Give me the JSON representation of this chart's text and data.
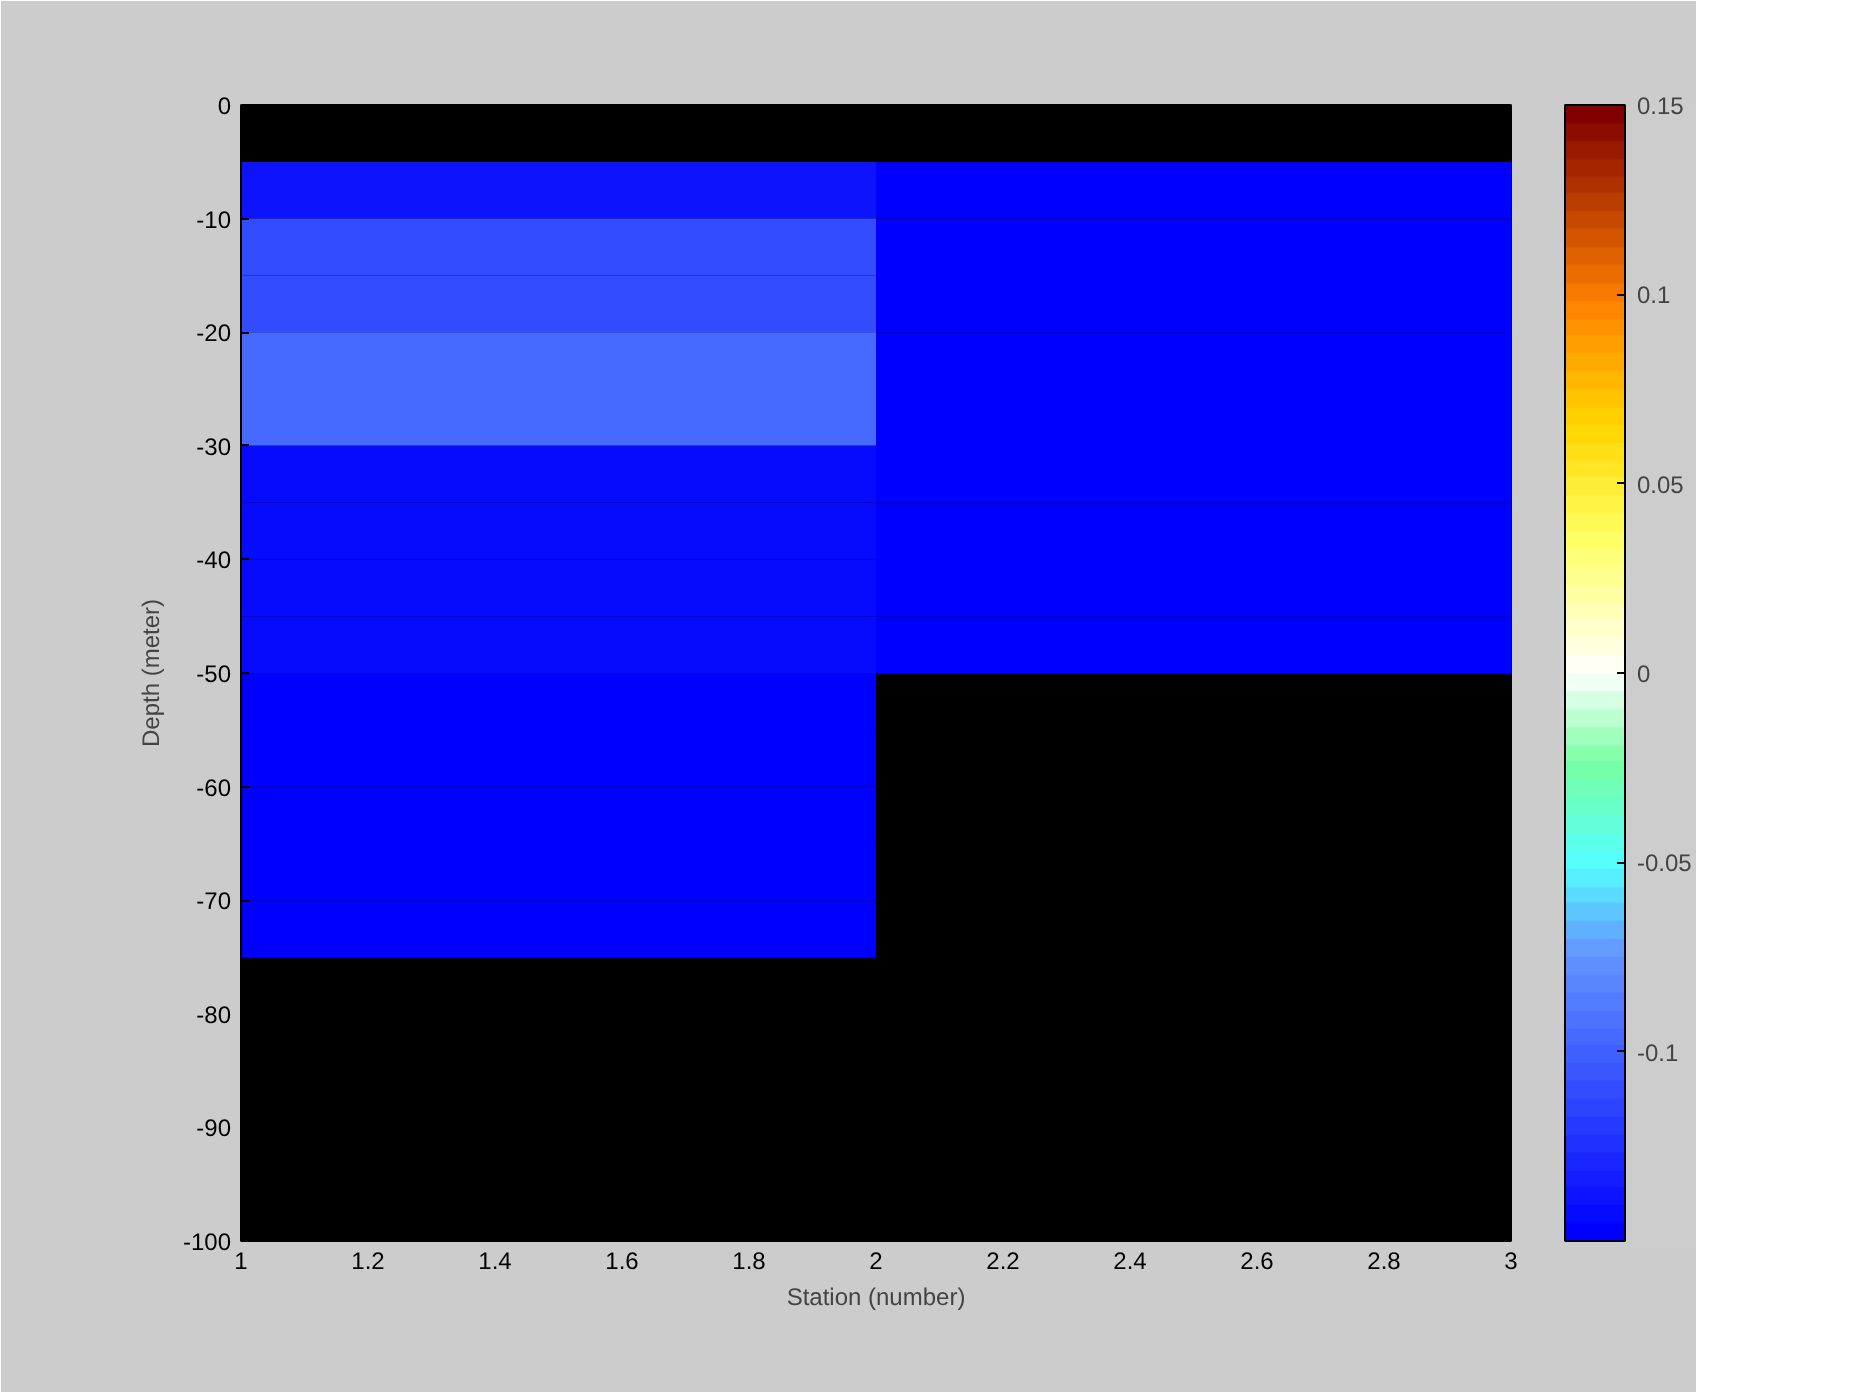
{
  "chart_data": {
    "type": "heatmap",
    "xlabel": "Station (number)",
    "ylabel": "Depth (meter)",
    "x": [
      1.5,
      2.5
    ],
    "y": [
      -7.5,
      -12.5,
      -17.5,
      -22.5,
      -27.5,
      -32.5,
      -37.5,
      -42.5,
      -47.5,
      -52.5,
      -57.5,
      -62.5,
      -67.5,
      -72.5
    ],
    "cells": [
      [
        -0.14,
        -0.15
      ],
      [
        -0.11,
        -0.15
      ],
      [
        -0.11,
        -0.15
      ],
      [
        -0.095,
        -0.15
      ],
      [
        -0.095,
        -0.15
      ],
      [
        -0.145,
        -0.15
      ],
      [
        -0.145,
        -0.15
      ],
      [
        -0.145,
        -0.15
      ],
      [
        -0.145,
        -0.15
      ],
      [
        -0.15,
        null
      ],
      [
        -0.15,
        null
      ],
      [
        -0.15,
        null
      ],
      [
        -0.15,
        null
      ],
      [
        -0.15,
        null
      ]
    ],
    "xlim": [
      1,
      3
    ],
    "xticks": [
      1,
      1.2,
      1.4,
      1.6,
      1.8,
      2,
      2.2,
      2.4,
      2.6,
      2.8,
      3
    ],
    "ylim": [
      -100,
      0
    ],
    "yticks": [
      -100,
      -90,
      -80,
      -70,
      -60,
      -50,
      -40,
      -30,
      -20,
      -10,
      0
    ],
    "clim": [
      -0.15,
      0.15
    ],
    "cticks": [
      -0.1,
      -0.05,
      0,
      0.05,
      0.1,
      0.15
    ]
  }
}
